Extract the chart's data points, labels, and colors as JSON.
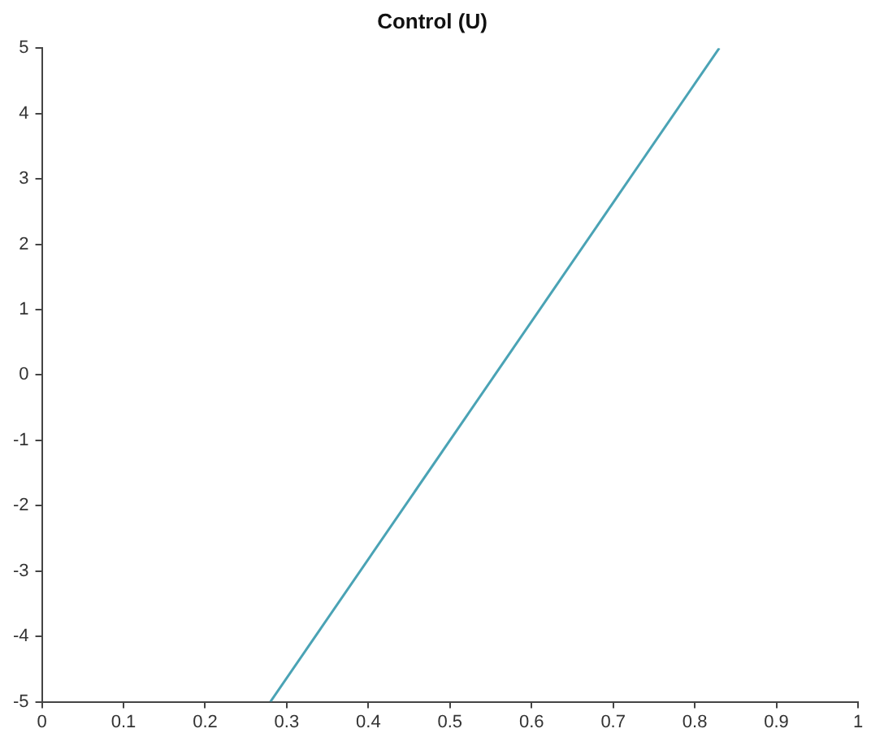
{
  "chart_data": {
    "type": "line",
    "title": "Control (U)",
    "x": [
      0.28,
      0.83
    ],
    "series": [
      {
        "color": "#4aa3b5",
        "values": [
          -5,
          5
        ]
      }
    ],
    "xlim": [
      0,
      1
    ],
    "xticks": [
      0,
      0.1,
      0.2,
      0.3,
      0.4,
      0.5,
      0.6,
      0.7,
      0.8,
      0.9,
      1
    ],
    "ylim": [
      -5,
      5
    ],
    "yticks": [
      -5,
      -4,
      -3,
      -2,
      -1,
      0,
      1,
      2,
      3,
      4,
      5
    ],
    "grid": false,
    "legend": false,
    "marker": "none",
    "line_style": "solid"
  }
}
